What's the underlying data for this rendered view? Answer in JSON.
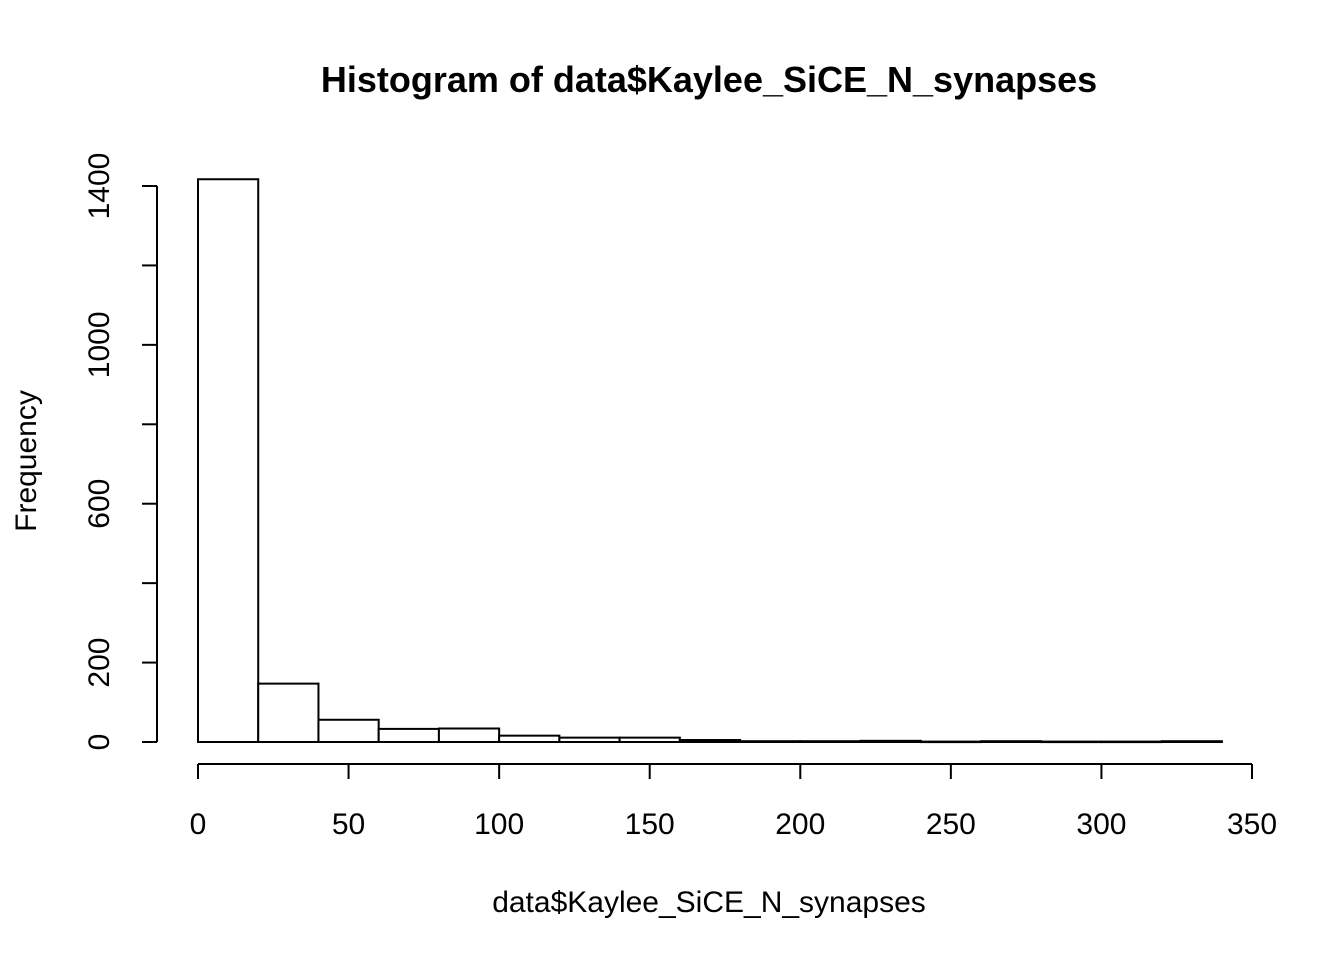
{
  "chart_data": {
    "type": "bar",
    "title": "Histogram of data$Kaylee_SiCE_N_synapses",
    "xlabel": "data$Kaylee_SiCE_N_synapses",
    "ylabel": "Frequency",
    "bin_edges": [
      0,
      20,
      40,
      60,
      80,
      100,
      120,
      140,
      160,
      180,
      200,
      220,
      240,
      260,
      280,
      300,
      320,
      340
    ],
    "values": [
      1417,
      147,
      56,
      33,
      34,
      16,
      11,
      11,
      5,
      2,
      2,
      3,
      1,
      2,
      1,
      1,
      2
    ],
    "xlim": [
      0,
      350
    ],
    "ylim": [
      0,
      1417
    ],
    "x_ticks": [
      0,
      50,
      100,
      150,
      200,
      250,
      300,
      350
    ],
    "y_ticks": [
      0,
      200,
      400,
      600,
      800,
      1000,
      1200,
      1400
    ],
    "y_tick_labels": [
      "0",
      "200",
      "",
      "600",
      "",
      "1000",
      "",
      "1400"
    ],
    "grid": false
  }
}
